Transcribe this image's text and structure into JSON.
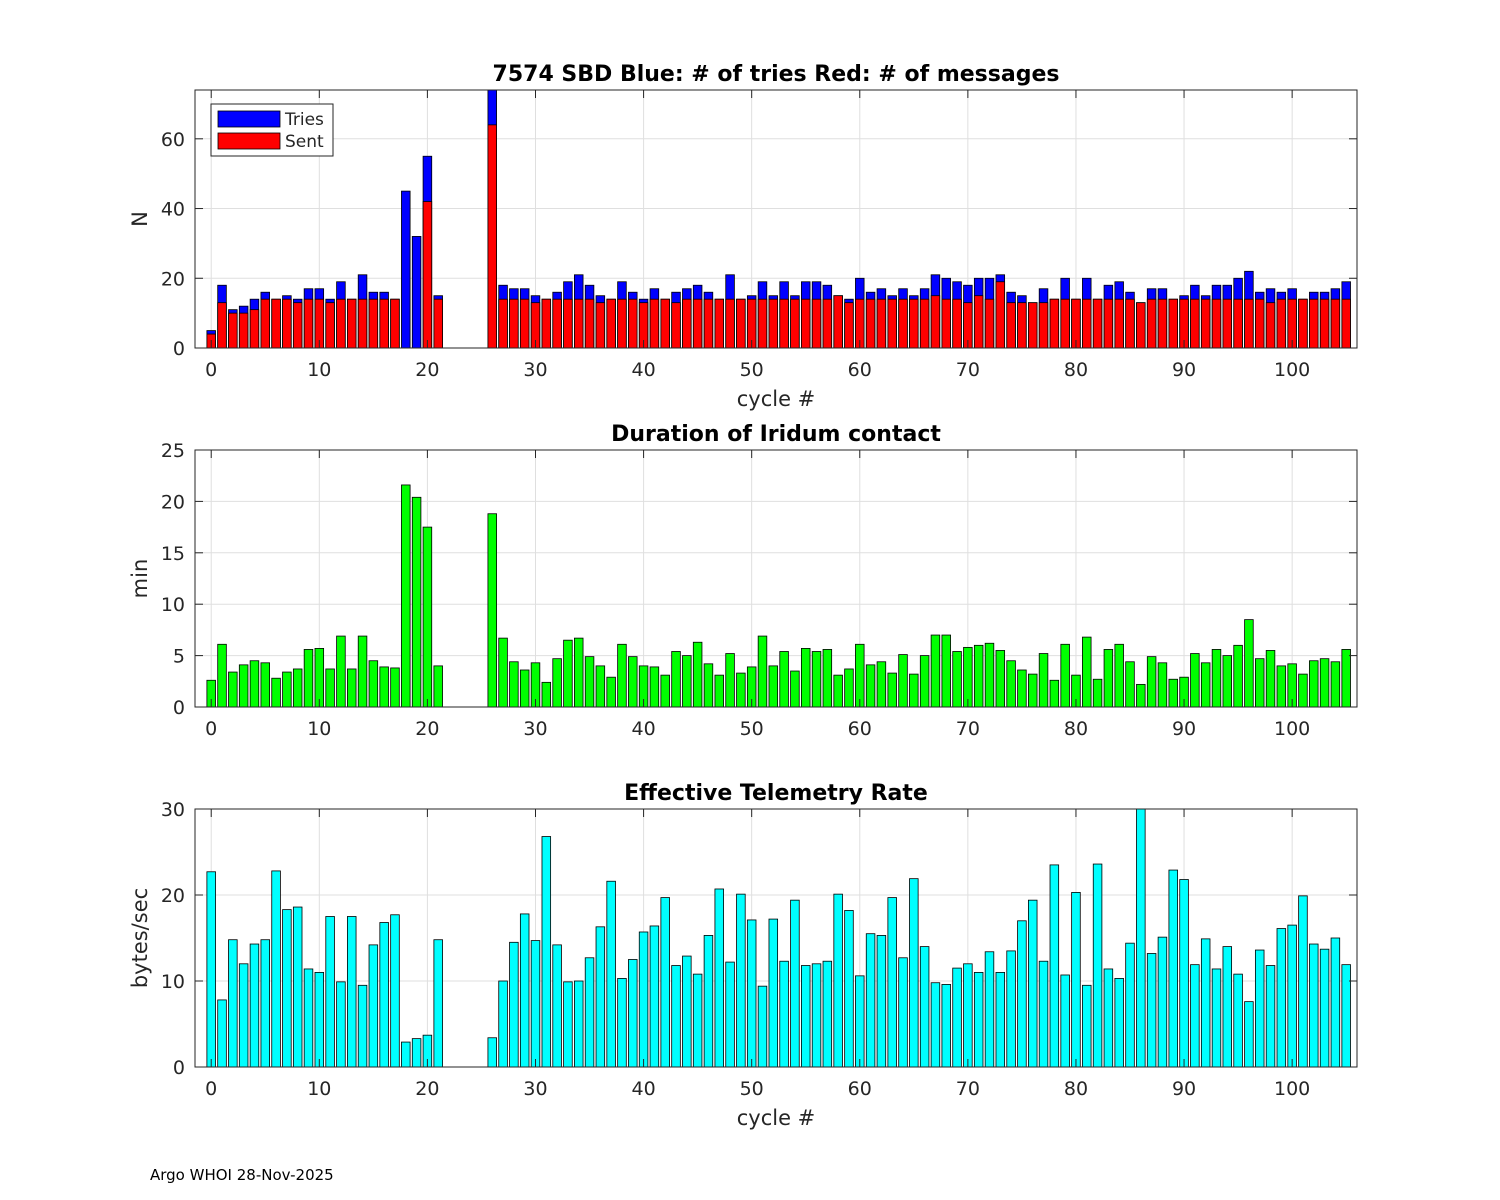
{
  "colors": {
    "tries": "#0000ff",
    "sent": "#ff0000",
    "duration": "#00ff00",
    "rate": "#00ffff"
  },
  "footer": "Argo WHOI 28-Nov-2025",
  "chart_data": [
    {
      "type": "bar",
      "title": "7574 SBD  Blue: # of tries   Red: # of messages",
      "xlabel": "cycle #",
      "ylabel": "N",
      "xlim": [
        -1.5,
        106
      ],
      "ylim": [
        0,
        74
      ],
      "xticks": [
        0,
        10,
        20,
        30,
        40,
        50,
        60,
        70,
        80,
        90,
        100
      ],
      "yticks": [
        0,
        20,
        40,
        60
      ],
      "grid": true,
      "legend": {
        "placement": "top-left",
        "entries": [
          "Tries",
          "Sent"
        ]
      },
      "overlay": true,
      "x": [
        0,
        1,
        2,
        3,
        4,
        5,
        6,
        7,
        8,
        9,
        10,
        11,
        12,
        13,
        14,
        15,
        16,
        17,
        18,
        19,
        20,
        21,
        22,
        23,
        24,
        25,
        26,
        27,
        28,
        29,
        30,
        31,
        32,
        33,
        34,
        35,
        36,
        37,
        38,
        39,
        40,
        41,
        42,
        43,
        44,
        45,
        46,
        47,
        48,
        49,
        50,
        51,
        52,
        53,
        54,
        55,
        56,
        57,
        58,
        59,
        60,
        61,
        62,
        63,
        64,
        65,
        66,
        67,
        68,
        69,
        70,
        71,
        72,
        73,
        74,
        75,
        76,
        77,
        78,
        79,
        80,
        81,
        82,
        83,
        84,
        85,
        86,
        87,
        88,
        89,
        90,
        91,
        92,
        93,
        94,
        95,
        96,
        97,
        98,
        99,
        100,
        101,
        102,
        103,
        104,
        105
      ],
      "series": [
        {
          "name": "Tries",
          "values": [
            5,
            18,
            11,
            12,
            14,
            16,
            14,
            15,
            14,
            17,
            17,
            14,
            19,
            14,
            21,
            16,
            16,
            14,
            45,
            32,
            55,
            15,
            0,
            0,
            0,
            0,
            74,
            18,
            17,
            17,
            15,
            14,
            16,
            19,
            21,
            18,
            15,
            14,
            19,
            16,
            14,
            17,
            14,
            16,
            17,
            18,
            16,
            14,
            21,
            14,
            15,
            19,
            15,
            19,
            15,
            19,
            19,
            18,
            15,
            14,
            20,
            16,
            17,
            15,
            17,
            15,
            17,
            21,
            20,
            19,
            18,
            20,
            20,
            21,
            16,
            15,
            13,
            17,
            14,
            20,
            14,
            20,
            14,
            18,
            19,
            16,
            13,
            17,
            17,
            14,
            15,
            18,
            15,
            18,
            18,
            20,
            22,
            16,
            17,
            16,
            17,
            14,
            16,
            16,
            17,
            19
          ]
        },
        {
          "name": "Sent",
          "values": [
            4,
            13,
            10,
            10,
            11,
            14,
            14,
            14,
            13,
            14,
            14,
            13,
            14,
            14,
            14,
            14,
            14,
            14,
            0,
            0,
            42,
            14,
            0,
            0,
            0,
            0,
            64,
            14,
            14,
            14,
            13,
            14,
            14,
            14,
            14,
            14,
            13,
            14,
            14,
            14,
            13,
            14,
            14,
            13,
            14,
            14,
            14,
            14,
            14,
            14,
            14,
            14,
            14,
            14,
            14,
            14,
            14,
            14,
            15,
            13,
            14,
            14,
            14,
            14,
            14,
            14,
            14,
            15,
            14,
            14,
            13,
            15,
            14,
            19,
            13,
            13,
            13,
            13,
            14,
            14,
            14,
            14,
            14,
            14,
            14,
            14,
            13,
            14,
            14,
            14,
            14,
            14,
            14,
            14,
            14,
            14,
            14,
            14,
            13,
            14,
            14,
            14,
            14,
            14,
            14,
            14
          ]
        }
      ]
    },
    {
      "type": "bar",
      "title": "Duration of Iridum contact",
      "xlabel": "",
      "ylabel": "min",
      "xlim": [
        -1.5,
        106
      ],
      "ylim": [
        0,
        25
      ],
      "xticks": [
        0,
        10,
        20,
        30,
        40,
        50,
        60,
        70,
        80,
        90,
        100
      ],
      "yticks": [
        0,
        5,
        10,
        15,
        20,
        25
      ],
      "grid": true,
      "x": [
        0,
        1,
        2,
        3,
        4,
        5,
        6,
        7,
        8,
        9,
        10,
        11,
        12,
        13,
        14,
        15,
        16,
        17,
        18,
        19,
        20,
        21,
        22,
        23,
        24,
        25,
        26,
        27,
        28,
        29,
        30,
        31,
        32,
        33,
        34,
        35,
        36,
        37,
        38,
        39,
        40,
        41,
        42,
        43,
        44,
        45,
        46,
        47,
        48,
        49,
        50,
        51,
        52,
        53,
        54,
        55,
        56,
        57,
        58,
        59,
        60,
        61,
        62,
        63,
        64,
        65,
        66,
        67,
        68,
        69,
        70,
        71,
        72,
        73,
        74,
        75,
        76,
        77,
        78,
        79,
        80,
        81,
        82,
        83,
        84,
        85,
        86,
        87,
        88,
        89,
        90,
        91,
        92,
        93,
        94,
        95,
        96,
        97,
        98,
        99,
        100,
        101,
        102,
        103,
        104,
        105
      ],
      "series": [
        {
          "name": "",
          "values": [
            2.6,
            6.1,
            3.4,
            4.1,
            4.5,
            4.3,
            2.8,
            3.4,
            3.7,
            5.6,
            5.7,
            3.7,
            6.9,
            3.7,
            6.9,
            4.5,
            3.9,
            3.8,
            21.6,
            20.4,
            17.5,
            4.0,
            0,
            0,
            0,
            0,
            18.8,
            6.7,
            4.4,
            3.6,
            4.3,
            2.4,
            4.7,
            6.5,
            6.7,
            4.9,
            4.0,
            2.9,
            6.1,
            4.9,
            4.0,
            3.9,
            3.1,
            5.4,
            5.0,
            6.3,
            4.2,
            3.1,
            5.2,
            3.3,
            3.9,
            6.9,
            4.0,
            5.4,
            3.5,
            5.7,
            5.4,
            5.6,
            3.1,
            3.7,
            6.1,
            4.1,
            4.4,
            3.3,
            5.1,
            3.2,
            5.0,
            7.0,
            7.0,
            5.4,
            5.8,
            6.0,
            6.2,
            5.5,
            4.5,
            3.6,
            3.2,
            5.2,
            2.6,
            6.1,
            3.1,
            6.8,
            2.7,
            5.6,
            6.1,
            4.4,
            2.2,
            4.9,
            4.3,
            2.7,
            2.9,
            5.2,
            4.3,
            5.6,
            5.0,
            6.0,
            8.5,
            4.7,
            5.5,
            4.0,
            4.2,
            3.2,
            4.5,
            4.7,
            4.4,
            5.6
          ]
        }
      ]
    },
    {
      "type": "bar",
      "title": "Effective Telemetry Rate",
      "xlabel": "cycle #",
      "ylabel": "bytes/sec",
      "xlim": [
        -1.5,
        106
      ],
      "ylim": [
        0,
        30
      ],
      "xticks": [
        0,
        10,
        20,
        30,
        40,
        50,
        60,
        70,
        80,
        90,
        100
      ],
      "yticks": [
        0,
        10,
        20,
        30
      ],
      "grid": true,
      "x": [
        0,
        1,
        2,
        3,
        4,
        5,
        6,
        7,
        8,
        9,
        10,
        11,
        12,
        13,
        14,
        15,
        16,
        17,
        18,
        19,
        20,
        21,
        22,
        23,
        24,
        25,
        26,
        27,
        28,
        29,
        30,
        31,
        32,
        33,
        34,
        35,
        36,
        37,
        38,
        39,
        40,
        41,
        42,
        43,
        44,
        45,
        46,
        47,
        48,
        49,
        50,
        51,
        52,
        53,
        54,
        55,
        56,
        57,
        58,
        59,
        60,
        61,
        62,
        63,
        64,
        65,
        66,
        67,
        68,
        69,
        70,
        71,
        72,
        73,
        74,
        75,
        76,
        77,
        78,
        79,
        80,
        81,
        82,
        83,
        84,
        85,
        86,
        87,
        88,
        89,
        90,
        91,
        92,
        93,
        94,
        95,
        96,
        97,
        98,
        99,
        100,
        101,
        102,
        103,
        104,
        105
      ],
      "series": [
        {
          "name": "",
          "values": [
            22.7,
            7.8,
            14.8,
            12.0,
            14.3,
            14.8,
            22.8,
            18.3,
            18.6,
            11.4,
            11.0,
            17.5,
            9.9,
            17.5,
            9.5,
            14.2,
            16.8,
            17.7,
            2.9,
            3.3,
            3.7,
            14.8,
            0,
            0,
            0,
            0,
            3.4,
            10.0,
            14.5,
            17.8,
            14.7,
            26.8,
            14.2,
            9.9,
            10.0,
            12.7,
            16.3,
            21.6,
            10.3,
            12.5,
            15.7,
            16.4,
            19.7,
            11.8,
            12.9,
            10.8,
            15.3,
            20.7,
            12.2,
            20.1,
            17.1,
            9.4,
            17.2,
            12.3,
            19.4,
            11.8,
            12.0,
            12.3,
            20.1,
            18.2,
            10.6,
            15.5,
            15.3,
            19.7,
            12.7,
            21.9,
            14.0,
            9.8,
            9.6,
            11.5,
            12.0,
            11.0,
            13.4,
            11.0,
            13.5,
            17.0,
            19.4,
            12.3,
            23.5,
            10.7,
            20.3,
            9.5,
            23.6,
            11.4,
            10.3,
            14.4,
            30.0,
            13.2,
            15.1,
            22.9,
            21.8,
            11.9,
            14.9,
            11.4,
            14.0,
            10.8,
            7.6,
            13.6,
            11.8,
            16.1,
            16.5,
            19.9,
            14.3,
            13.7,
            15.0,
            11.9
          ]
        }
      ]
    }
  ]
}
